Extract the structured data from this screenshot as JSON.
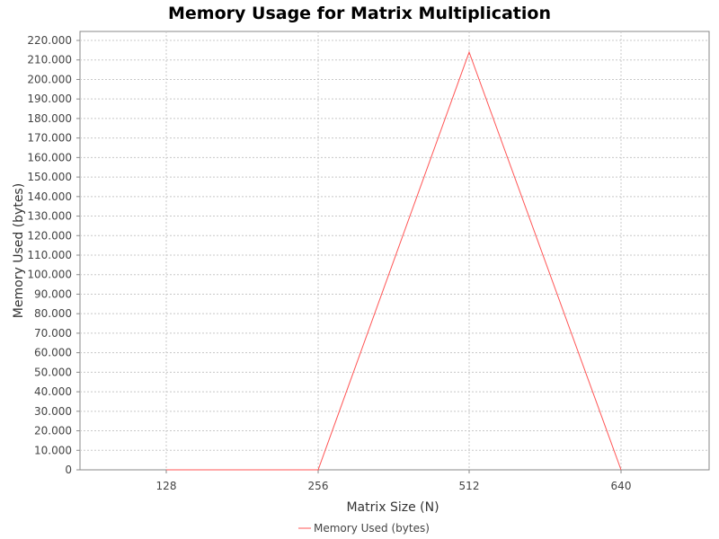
{
  "chart_data": {
    "type": "line",
    "title": "Memory Usage for Matrix Multiplication",
    "xlabel": "Matrix Size (N)",
    "ylabel": "Memory Used (bytes)",
    "categories": [
      "128",
      "256",
      "512",
      "640"
    ],
    "series": [
      {
        "name": "Memory Used (bytes)",
        "values": [
          0,
          0,
          214000,
          0
        ],
        "color": "#ff5555"
      }
    ],
    "ylim": [
      0,
      220000
    ],
    "yticks": [
      {
        "value": 0,
        "label": "0"
      },
      {
        "value": 10000,
        "label": "10.000"
      },
      {
        "value": 20000,
        "label": "20.000"
      },
      {
        "value": 30000,
        "label": "30.000"
      },
      {
        "value": 40000,
        "label": "40.000"
      },
      {
        "value": 50000,
        "label": "50.000"
      },
      {
        "value": 60000,
        "label": "60.000"
      },
      {
        "value": 70000,
        "label": "70.000"
      },
      {
        "value": 80000,
        "label": "80.000"
      },
      {
        "value": 90000,
        "label": "90.000"
      },
      {
        "value": 100000,
        "label": "100.000"
      },
      {
        "value": 110000,
        "label": "110.000"
      },
      {
        "value": 120000,
        "label": "120.000"
      },
      {
        "value": 130000,
        "label": "130.000"
      },
      {
        "value": 140000,
        "label": "140.000"
      },
      {
        "value": 150000,
        "label": "150.000"
      },
      {
        "value": 160000,
        "label": "160.000"
      },
      {
        "value": 170000,
        "label": "170.000"
      },
      {
        "value": 180000,
        "label": "180.000"
      },
      {
        "value": 190000,
        "label": "190.000"
      },
      {
        "value": 200000,
        "label": "200.000"
      },
      {
        "value": 210000,
        "label": "210.000"
      },
      {
        "value": 220000,
        "label": "220.000"
      }
    ],
    "grid": true,
    "legend_position": "bottom"
  }
}
